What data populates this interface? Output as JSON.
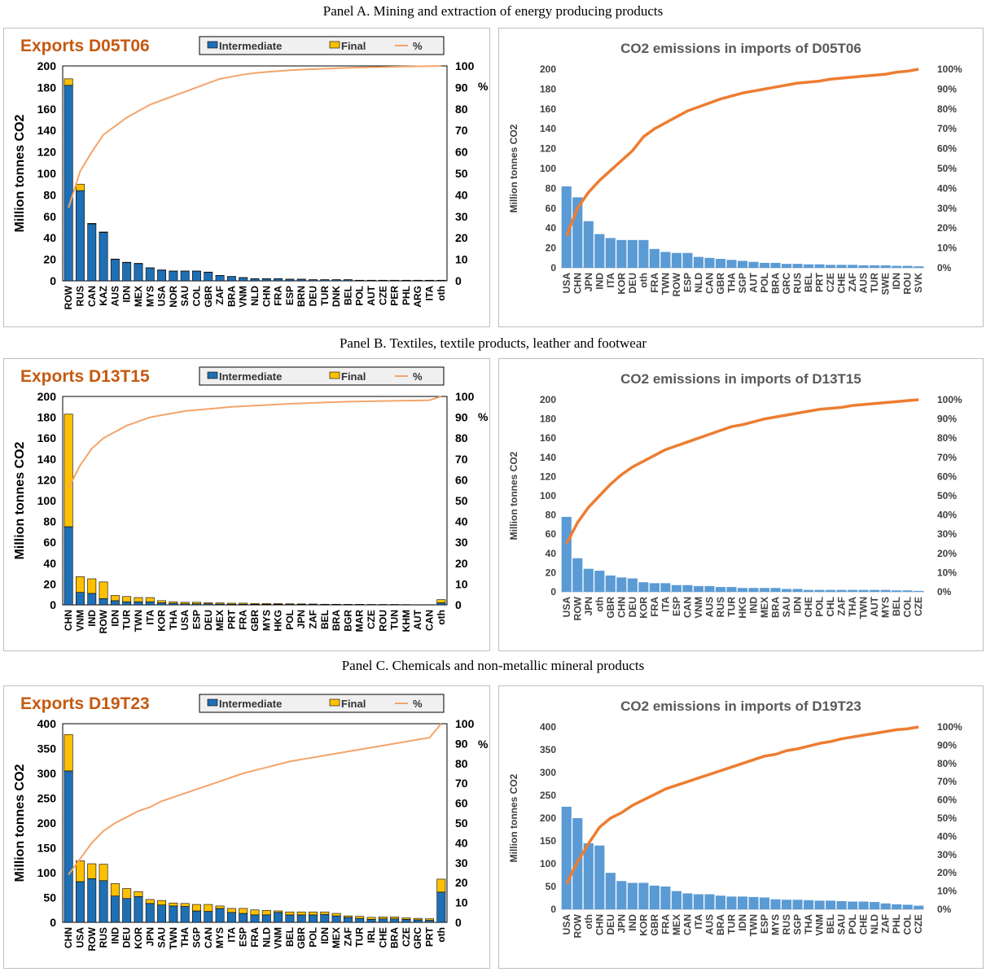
{
  "panels": [
    {
      "title": "Panel A. Mining and extraction of energy producing products"
    },
    {
      "title": "Panel B. Textiles, textile products, leather and footwear"
    },
    {
      "title": "Panel C. Chemicals and non-metallic mineral products"
    }
  ],
  "colors": {
    "intermediate": "#1f6fb4",
    "final": "#ffc000",
    "cumulative_left": "#f4a46a",
    "bars_right": "#5b9bd5",
    "cumulative_right": "#ed7d31",
    "title_exports": "#c55a11",
    "title_imports": "#595959"
  },
  "chart_data": [
    {
      "id": "exports-D05T06",
      "type": "bar",
      "title": "Exports D05T06",
      "ylabel": "Million tonnes CO2",
      "ylim": [
        0,
        200
      ],
      "yticks": [
        0,
        20,
        40,
        60,
        80,
        100,
        120,
        140,
        160,
        180,
        200
      ],
      "y2lim": [
        0,
        100
      ],
      "y2ticks": [
        0,
        10,
        20,
        30,
        40,
        50,
        60,
        70,
        80,
        90,
        100
      ],
      "y2label": "%",
      "legend": [
        "Intermediate",
        "Final",
        "%"
      ],
      "categories": [
        "ROW",
        "RUS",
        "CAN",
        "KAZ",
        "AUS",
        "IDN",
        "MEX",
        "MYS",
        "USA",
        "NOR",
        "SAU",
        "COL",
        "GBR",
        "ZAF",
        "BRA",
        "VNM",
        "NLD",
        "CHN",
        "FRA",
        "ESP",
        "BRN",
        "DEU",
        "TUR",
        "DNK",
        "BEL",
        "POL",
        "AUT",
        "CZE",
        "PER",
        "PHL",
        "ARG",
        "ITA",
        "oth"
      ],
      "series": [
        {
          "name": "Intermediate",
          "values": [
            182,
            84,
            53,
            45,
            20,
            17,
            16,
            12,
            10,
            9,
            9,
            9,
            8,
            5,
            4,
            3,
            2,
            2,
            2,
            1.5,
            1.5,
            1,
            1,
            1,
            1,
            0.5,
            0.5,
            0.5,
            0.5,
            0.5,
            0.5,
            0.5,
            0.5
          ]
        },
        {
          "name": "Final",
          "values": [
            6,
            6,
            0.5,
            0.5,
            0.3,
            0.3,
            0.3,
            0.2,
            0.2,
            0.2,
            0.2,
            0.2,
            0.2,
            0.1,
            0.1,
            0.1,
            0.1,
            0.1,
            0.1,
            0.1,
            0.1,
            0.1,
            0.1,
            0.1,
            0.1,
            0.1,
            0.1,
            0.1,
            0.1,
            0.1,
            0.1,
            0.1,
            0.1
          ]
        },
        {
          "name": "%",
          "values": [
            34,
            51,
            60,
            68,
            72,
            76,
            79,
            82,
            84,
            86,
            88,
            90,
            92,
            94,
            95,
            96,
            96.7,
            97.2,
            97.6,
            98,
            98.3,
            98.5,
            98.7,
            98.9,
            99.1,
            99.3,
            99.4,
            99.5,
            99.6,
            99.7,
            99.8,
            99.9,
            100
          ]
        }
      ]
    },
    {
      "id": "imports-D05T06",
      "type": "bar",
      "title": "CO2 emissions in imports of D05T06",
      "ylabel": "Million tonnes CO2",
      "ylim": [
        0,
        200
      ],
      "yticks": [
        0,
        20,
        40,
        60,
        80,
        100,
        120,
        140,
        160,
        180,
        200
      ],
      "y2ticks": [
        "0%",
        "10%",
        "20%",
        "30%",
        "40%",
        "50%",
        "60%",
        "70%",
        "80%",
        "90%",
        "100%"
      ],
      "categories": [
        "USA",
        "CHN",
        "JPN",
        "IND",
        "ITA",
        "KOR",
        "DEU",
        "oth",
        "FRA",
        "TWN",
        "ROW",
        "ESP",
        "NLD",
        "CAN",
        "GBR",
        "THA",
        "SGP",
        "AUT",
        "POL",
        "BRA",
        "GRC",
        "RUS",
        "BEL",
        "PRT",
        "CZE",
        "CHE",
        "ZAF",
        "AUS",
        "TUR",
        "SWE",
        "IDN",
        "ROU",
        "SVK"
      ],
      "series": [
        {
          "name": "",
          "values": [
            82,
            71,
            47,
            34,
            30,
            28,
            28,
            28,
            19,
            16,
            15,
            15,
            11,
            10,
            9,
            8,
            7,
            6,
            5,
            5,
            4,
            4,
            3.5,
            3.5,
            3,
            3,
            3,
            2.5,
            2.5,
            2.5,
            2,
            2,
            1.5
          ]
        },
        {
          "name": "",
          "values": [
            16,
            30,
            38,
            44,
            49,
            54,
            59,
            66,
            70,
            73,
            76,
            79,
            81,
            83,
            85,
            86.5,
            88,
            89,
            90,
            91,
            92,
            93,
            93.5,
            94,
            95,
            95.5,
            96,
            96.5,
            97,
            97.5,
            98.5,
            99,
            100
          ]
        }
      ]
    },
    {
      "id": "exports-D13T15",
      "type": "bar",
      "title": "Exports D13T15",
      "ylabel": "Million tonnes CO2",
      "ylim": [
        0,
        200
      ],
      "yticks": [
        0,
        20,
        40,
        60,
        80,
        100,
        120,
        140,
        160,
        180,
        200
      ],
      "y2lim": [
        0,
        100
      ],
      "y2ticks": [
        0,
        10,
        20,
        30,
        40,
        50,
        60,
        70,
        80,
        90,
        100
      ],
      "y2label": "%",
      "legend": [
        "Intermediate",
        "Final",
        "%"
      ],
      "categories": [
        "CHN",
        "VNM",
        "IND",
        "ROW",
        "IDN",
        "TUR",
        "TWN",
        "ITA",
        "KOR",
        "THA",
        "USA",
        "ESP",
        "DEU",
        "MEX",
        "PRT",
        "FRA",
        "GBR",
        "MYS",
        "HKG",
        "POL",
        "JPN",
        "ZAF",
        "BEL",
        "BRA",
        "BGR",
        "MAR",
        "CZE",
        "ROU",
        "TUN",
        "KHM",
        "AUT",
        "CAN",
        "oth"
      ],
      "series": [
        {
          "name": "Intermediate",
          "values": [
            75,
            12,
            11,
            6,
            4,
            3,
            3,
            3,
            2,
            1.5,
            1,
            1,
            1,
            0.8,
            0.6,
            0.6,
            0.5,
            0.5,
            0.5,
            0.4,
            0.4,
            0.3,
            0.3,
            0.3,
            0.2,
            0.2,
            0.2,
            0.2,
            0.2,
            0.1,
            0.1,
            0.1,
            2
          ]
        },
        {
          "name": "Final",
          "values": [
            108,
            15,
            14,
            16,
            5,
            5,
            4,
            4,
            2,
            1.5,
            1.5,
            1.5,
            1,
            1,
            1,
            1,
            0.8,
            0.8,
            0.8,
            0.6,
            0.5,
            0.5,
            0.3,
            0.3,
            0.3,
            0.3,
            0.2,
            0.2,
            0.2,
            0.2,
            0.1,
            0.1,
            3
          ]
        },
        {
          "name": "%",
          "values": [
            56,
            67,
            75,
            80,
            83,
            86,
            88,
            90,
            91,
            92,
            93,
            93.5,
            94,
            94.5,
            95,
            95.3,
            95.6,
            95.9,
            96.2,
            96.5,
            96.7,
            96.9,
            97.1,
            97.3,
            97.5,
            97.6,
            97.7,
            97.8,
            97.9,
            98,
            98.1,
            98.2,
            100
          ]
        }
      ]
    },
    {
      "id": "imports-D13T15",
      "type": "bar",
      "title": "CO2 emissions in imports of D13T15",
      "ylabel": "Million tonnes CO2",
      "ylim": [
        0,
        200
      ],
      "yticks": [
        0,
        20,
        40,
        60,
        80,
        100,
        120,
        140,
        160,
        180,
        200
      ],
      "y2ticks": [
        "0%",
        "10%",
        "20%",
        "30%",
        "40%",
        "50%",
        "60%",
        "70%",
        "80%",
        "90%",
        "100%"
      ],
      "categories": [
        "USA",
        "ROW",
        "JPN",
        "oth",
        "GBR",
        "CHN",
        "DEU",
        "KOR",
        "FRA",
        "ITA",
        "ESP",
        "CAN",
        "VNM",
        "AUS",
        "RUS",
        "TUR",
        "HKG",
        "IND",
        "MEX",
        "BRA",
        "SAU",
        "IDN",
        "CHE",
        "POL",
        "CHL",
        "ZAF",
        "THA",
        "TWN",
        "AUT",
        "MYS",
        "BEL",
        "COL",
        "CZE"
      ],
      "series": [
        {
          "name": "",
          "values": [
            78,
            35,
            24,
            22,
            17,
            15,
            14,
            10,
            9,
            9,
            7,
            7,
            6,
            6,
            5,
            5,
            4,
            4,
            4,
            4,
            3,
            3,
            2,
            2,
            2,
            2,
            2,
            2,
            2,
            2,
            1.5,
            1.5,
            1
          ]
        },
        {
          "name": "",
          "values": [
            25,
            36,
            44,
            50,
            56,
            61,
            65,
            68,
            71,
            74,
            76,
            78,
            80,
            82,
            84,
            86,
            87,
            88.5,
            90,
            91,
            92,
            93,
            94,
            95,
            95.5,
            96,
            97,
            97.5,
            98,
            98.5,
            99,
            99.5,
            100
          ]
        }
      ]
    },
    {
      "id": "exports-D19T23",
      "type": "bar",
      "title": "Exports D19T23",
      "ylabel": "Million tonnes CO2",
      "ylim": [
        0,
        400
      ],
      "yticks": [
        0,
        50,
        100,
        150,
        200,
        250,
        300,
        350,
        400
      ],
      "y2lim": [
        0,
        100
      ],
      "y2ticks": [
        0,
        10,
        20,
        30,
        40,
        50,
        60,
        70,
        80,
        90,
        100
      ],
      "y2label": "%",
      "legend": [
        "Intermediate",
        "Final",
        "%"
      ],
      "categories": [
        "CHN",
        "USA",
        "ROW",
        "RUS",
        "IND",
        "DEU",
        "KOR",
        "JPN",
        "SAU",
        "TWN",
        "THA",
        "SGP",
        "CAN",
        "MYS",
        "ITA",
        "ESP",
        "FRA",
        "NLD",
        "VNM",
        "BEL",
        "GBR",
        "POL",
        "IDN",
        "MEX",
        "ZAF",
        "TUR",
        "IRL",
        "CHE",
        "BRA",
        "CZE",
        "GRC",
        "PRT",
        "oth"
      ],
      "series": [
        {
          "name": "Intermediate",
          "values": [
            305,
            82,
            88,
            84,
            53,
            48,
            52,
            38,
            35,
            33,
            32,
            23,
            22,
            28,
            20,
            18,
            15,
            15,
            20,
            15,
            15,
            15,
            16,
            13,
            10,
            8,
            6,
            7,
            7,
            6,
            5,
            4,
            61
          ]
        },
        {
          "name": "Final",
          "values": [
            73,
            42,
            30,
            33,
            25,
            20,
            10,
            8,
            9,
            6,
            6,
            13,
            14,
            5,
            8,
            10,
            10,
            9,
            3,
            6,
            6,
            6,
            5,
            5,
            3,
            4,
            4,
            4,
            4,
            3,
            3,
            3,
            26
          ]
        },
        {
          "name": "%",
          "values": [
            24,
            32,
            40,
            46,
            50,
            53,
            56,
            58,
            61,
            63,
            65,
            67,
            69,
            71,
            73,
            75,
            76.5,
            78,
            79.5,
            81,
            82,
            83,
            84,
            85,
            86,
            87,
            88,
            89,
            90,
            91,
            92,
            93,
            100
          ]
        }
      ]
    },
    {
      "id": "imports-D19T23",
      "type": "bar",
      "title": "CO2 emissions in imports of D19T23",
      "ylabel": "Million tonnes CO2",
      "ylim": [
        0,
        400
      ],
      "yticks": [
        0,
        50,
        100,
        150,
        200,
        250,
        300,
        350,
        400
      ],
      "y2ticks": [
        "0%",
        "10%",
        "20%",
        "30%",
        "40%",
        "50%",
        "60%",
        "70%",
        "80%",
        "90%",
        "100%"
      ],
      "categories": [
        "USA",
        "ROW",
        "oth",
        "CHN",
        "DEU",
        "JPN",
        "IND",
        "KOR",
        "GBR",
        "FRA",
        "MEX",
        "CAN",
        "ITA",
        "AUS",
        "BRA",
        "TUR",
        "IDN",
        "TWN",
        "ESP",
        "MYS",
        "RUS",
        "SGP",
        "THA",
        "VNM",
        "BEL",
        "SAU",
        "POL",
        "CHE",
        "NLD",
        "ZAF",
        "PHL",
        "COL",
        "CZE"
      ],
      "series": [
        {
          "name": "",
          "values": [
            225,
            200,
            145,
            140,
            80,
            62,
            58,
            58,
            52,
            50,
            40,
            35,
            33,
            33,
            30,
            28,
            28,
            27,
            26,
            22,
            21,
            21,
            20,
            19,
            19,
            18,
            17,
            17,
            16,
            13,
            11,
            10,
            8
          ]
        },
        {
          "name": "",
          "values": [
            14,
            26,
            36,
            45,
            50,
            53,
            57,
            60,
            63,
            66,
            68,
            70,
            72,
            74,
            76,
            78,
            80,
            82,
            84,
            85,
            87,
            88,
            89.5,
            91,
            92,
            93.5,
            94.5,
            95.5,
            96.5,
            97.5,
            98.5,
            99,
            100
          ]
        }
      ]
    }
  ]
}
